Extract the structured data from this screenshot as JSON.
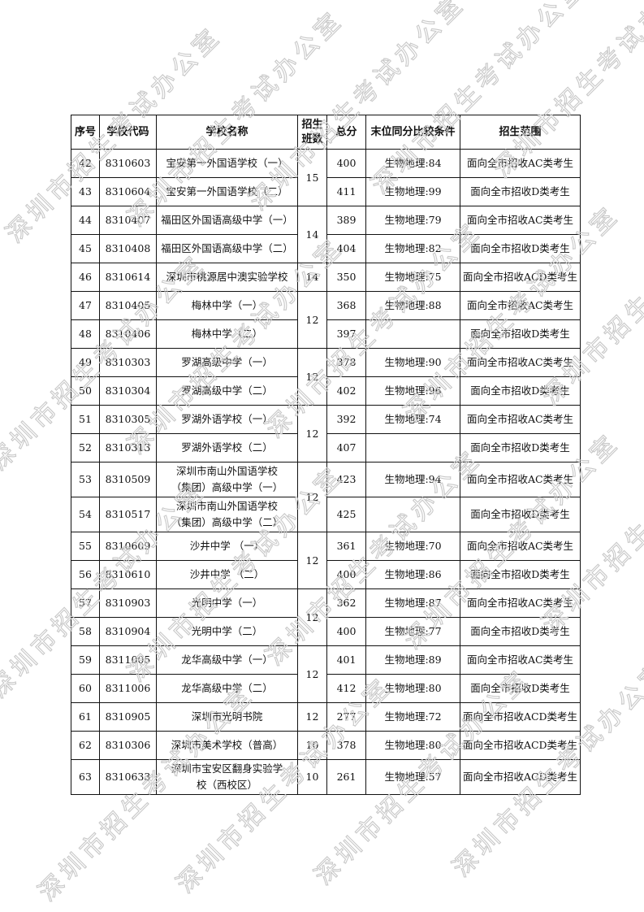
{
  "watermark": "深圳市招生考试办公室",
  "table": {
    "headers": [
      "序号",
      "学校代码",
      "学校名称",
      "招生班数",
      "总分",
      "末位同分比较条件",
      "招生范围"
    ],
    "groups": [
      {
        "class_count": "15",
        "rows": [
          {
            "no": "42",
            "code": "8310603",
            "name": "宝安第一外国语学校（一）",
            "score": "400",
            "tiebreak": "生物地理:84",
            "scope": "面向全市招收AC类考生"
          },
          {
            "no": "43",
            "code": "8310604",
            "name": "宝安第一外国语学校（二）",
            "score": "411",
            "tiebreak": "生物地理:99",
            "scope": "面向全市招收D类考生"
          }
        ]
      },
      {
        "class_count": "14",
        "rows": [
          {
            "no": "44",
            "code": "8310407",
            "name": "福田区外国语高级中学（一）",
            "score": "389",
            "tiebreak": "生物地理:79",
            "scope": "面向全市招收AC类考生"
          },
          {
            "no": "45",
            "code": "8310408",
            "name": "福田区外国语高级中学（二）",
            "score": "404",
            "tiebreak": "生物地理:82",
            "scope": "面向全市招收D类考生"
          }
        ]
      },
      {
        "class_count": "14",
        "rows": [
          {
            "no": "46",
            "code": "8310614",
            "name": "深圳市桃源居中澳实验学校",
            "score": "350",
            "tiebreak": "生物地理:75",
            "scope": "面向全市招收ACD类考生"
          }
        ]
      },
      {
        "class_count": "12",
        "rows": [
          {
            "no": "47",
            "code": "8310405",
            "name": "梅林中学（一）",
            "score": "368",
            "tiebreak": "生物地理:88",
            "scope": "面向全市招收AC类考生"
          },
          {
            "no": "48",
            "code": "8310406",
            "name": "梅林中学（二）",
            "score": "397",
            "tiebreak": "",
            "scope": "面向全市招收D类考生"
          }
        ]
      },
      {
        "class_count": "12",
        "rows": [
          {
            "no": "49",
            "code": "8310303",
            "name": "罗湖高级中学（一）",
            "score": "378",
            "tiebreak": "生物地理:90",
            "scope": "面向全市招收AC类考生"
          },
          {
            "no": "50",
            "code": "8310304",
            "name": "罗湖高级中学（二）",
            "score": "402",
            "tiebreak": "生物地理:96",
            "scope": "面向全市招收D类考生"
          }
        ]
      },
      {
        "class_count": "12",
        "rows": [
          {
            "no": "51",
            "code": "8310305",
            "name": "罗湖外语学校（一）",
            "score": "392",
            "tiebreak": "生物地理:74",
            "scope": "面向全市招收AC类考生"
          },
          {
            "no": "52",
            "code": "8310313",
            "name": "罗湖外语学校（二）",
            "score": "407",
            "tiebreak": "",
            "scope": "面向全市招收D类考生"
          }
        ]
      },
      {
        "class_count": "12",
        "rows": [
          {
            "no": "53",
            "code": "8310509",
            "name": "深圳市南山外国语学校（集团）高级中学（一）",
            "score": "423",
            "tiebreak": "生物地理:94",
            "scope": "面向全市招收AC类考生"
          },
          {
            "no": "54",
            "code": "8310517",
            "name": "深圳市南山外国语学校（集团）高级中学（二）",
            "score": "425",
            "tiebreak": "",
            "scope": "面向全市招收D类考生"
          }
        ]
      },
      {
        "class_count": "12",
        "rows": [
          {
            "no": "55",
            "code": "8310609",
            "name": "沙井中学 （一）",
            "score": "361",
            "tiebreak": "生物地理:70",
            "scope": "面向全市招收AC类考生"
          },
          {
            "no": "56",
            "code": "8310610",
            "name": "沙井中学 （二）",
            "score": "400",
            "tiebreak": "生物地理:86",
            "scope": "面向全市招收D类考生"
          }
        ]
      },
      {
        "class_count": "12",
        "rows": [
          {
            "no": "57",
            "code": "8310903",
            "name": "光明中学（一）",
            "score": "362",
            "tiebreak": "生物地理:87",
            "scope": "面向全市招收AC类考生"
          },
          {
            "no": "58",
            "code": "8310904",
            "name": "光明中学（二）",
            "score": "400",
            "tiebreak": "生物地理:77",
            "scope": "面向全市招收D类考生"
          }
        ]
      },
      {
        "class_count": "12",
        "rows": [
          {
            "no": "59",
            "code": "8311005",
            "name": "龙华高级中学（一）",
            "score": "401",
            "tiebreak": "生物地理:89",
            "scope": "面向全市招收AC类考生"
          },
          {
            "no": "60",
            "code": "8311006",
            "name": "龙华高级中学（二）",
            "score": "412",
            "tiebreak": "生物地理:80",
            "scope": "面向全市招收D类考生"
          }
        ]
      },
      {
        "class_count": "12",
        "rows": [
          {
            "no": "61",
            "code": "8310905",
            "name": "深圳市光明书院",
            "score": "277",
            "tiebreak": "生物地理:72",
            "scope": "面向全市招收ACD类考生"
          }
        ]
      },
      {
        "class_count": "10",
        "rows": [
          {
            "no": "62",
            "code": "8310306",
            "name": "深圳市美术学校（普高）",
            "score": "378",
            "tiebreak": "生物地理:80",
            "scope": "面向全市招收ACD类考生"
          }
        ]
      },
      {
        "class_count": "10",
        "rows": [
          {
            "no": "63",
            "code": "8310633",
            "name": "深圳市宝安区翻身实验学校（西校区）",
            "score": "261",
            "tiebreak": "生物地理:57",
            "scope": "面向全市招收ACD类考生"
          }
        ]
      }
    ]
  }
}
